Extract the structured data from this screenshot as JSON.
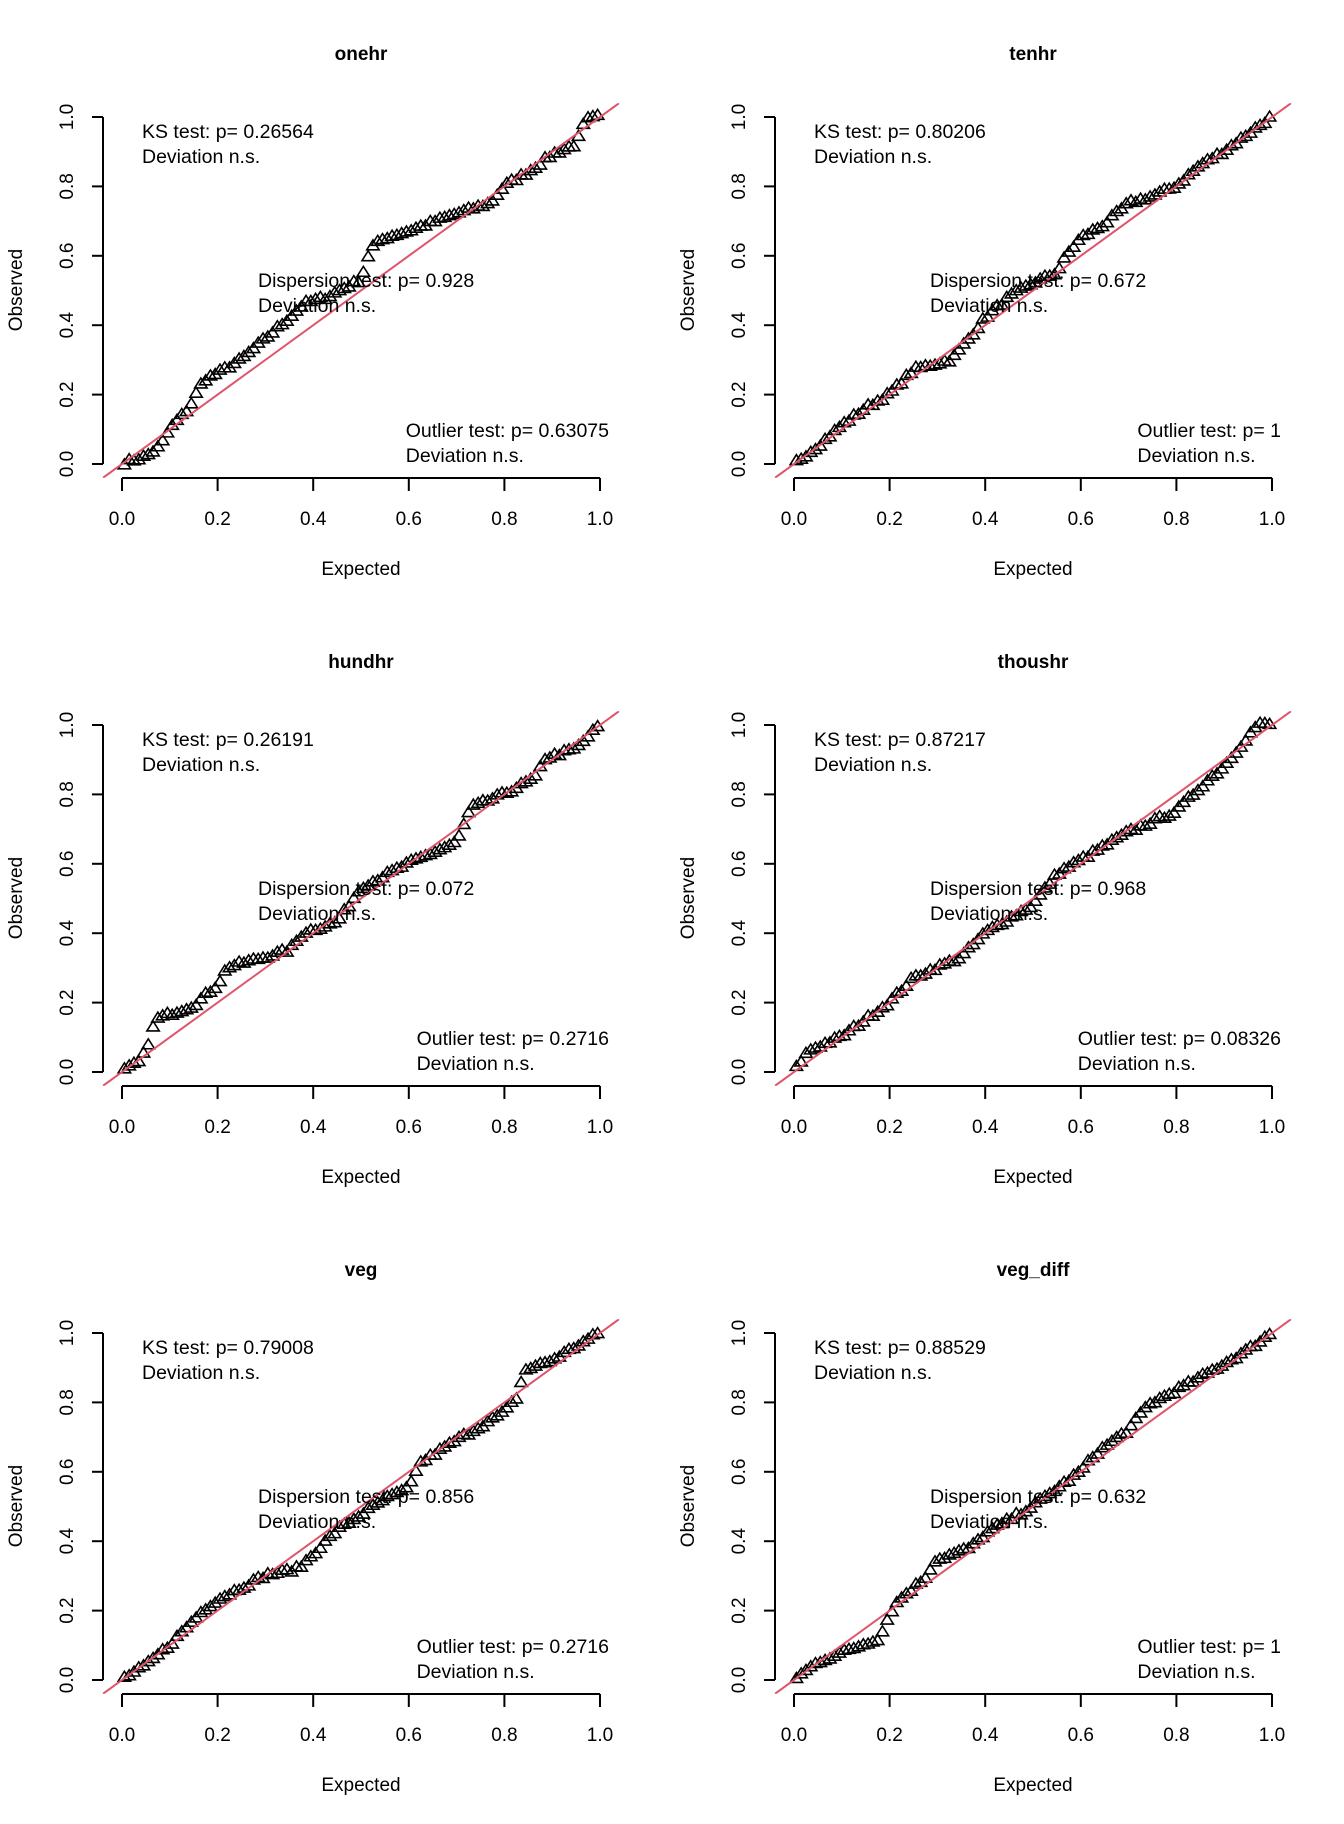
{
  "chart_data": [
    {
      "type": "scatter",
      "title": "onehr",
      "xlabel": "Expected",
      "ylabel": "Observed",
      "xlim": [
        0,
        1
      ],
      "ylim": [
        0,
        1
      ],
      "xticks": [
        "0.0",
        "0.2",
        "0.4",
        "0.6",
        "0.8",
        "1.0"
      ],
      "yticks": [
        "0.0",
        "0.2",
        "0.4",
        "0.6",
        "0.8",
        "1.0"
      ],
      "marker": "open-triangle",
      "reference_line": {
        "slope": 1,
        "intercept": 0,
        "color": "#DF536B"
      },
      "annotations": {
        "ks": [
          "KS test: p= 0.26564",
          "Deviation  n.s."
        ],
        "dispersion": [
          "Dispersion test: p= 0.928",
          "Deviation  n.s."
        ],
        "outlier": [
          "Outlier test: p= 0.63075",
          "Deviation  n.s."
        ]
      },
      "approx_curve": [
        [
          0,
          0
        ],
        [
          0.05,
          0.02
        ],
        [
          0.08,
          0.05
        ],
        [
          0.1,
          0.1
        ],
        [
          0.14,
          0.16
        ],
        [
          0.17,
          0.24
        ],
        [
          0.2,
          0.26
        ],
        [
          0.25,
          0.3
        ],
        [
          0.3,
          0.36
        ],
        [
          0.35,
          0.42
        ],
        [
          0.38,
          0.46
        ],
        [
          0.43,
          0.48
        ],
        [
          0.5,
          0.53
        ],
        [
          0.52,
          0.62
        ],
        [
          0.55,
          0.65
        ],
        [
          0.6,
          0.67
        ],
        [
          0.7,
          0.72
        ],
        [
          0.77,
          0.75
        ],
        [
          0.8,
          0.8
        ],
        [
          0.85,
          0.84
        ],
        [
          0.9,
          0.89
        ],
        [
          0.95,
          0.92
        ],
        [
          0.97,
          0.99
        ],
        [
          1,
          1
        ]
      ],
      "n_points": 100
    },
    {
      "type": "scatter",
      "title": "tenhr",
      "xlabel": "Expected",
      "ylabel": "Observed",
      "xlim": [
        0,
        1
      ],
      "ylim": [
        0,
        1
      ],
      "xticks": [
        "0.0",
        "0.2",
        "0.4",
        "0.6",
        "0.8",
        "1.0"
      ],
      "yticks": [
        "0.0",
        "0.2",
        "0.4",
        "0.6",
        "0.8",
        "1.0"
      ],
      "marker": "open-triangle",
      "reference_line": {
        "slope": 1,
        "intercept": 0,
        "color": "#DF536B"
      },
      "annotations": {
        "ks": [
          "KS test: p= 0.80206",
          "Deviation  n.s."
        ],
        "dispersion": [
          "Dispersion test: p= 0.672",
          "Deviation  n.s."
        ],
        "outlier": [
          "Outlier test: p= 1",
          "Deviation  n.s."
        ]
      },
      "approx_curve": [
        [
          0,
          0
        ],
        [
          0.05,
          0.05
        ],
        [
          0.1,
          0.11
        ],
        [
          0.15,
          0.16
        ],
        [
          0.2,
          0.2
        ],
        [
          0.25,
          0.27
        ],
        [
          0.33,
          0.3
        ],
        [
          0.36,
          0.35
        ],
        [
          0.4,
          0.42
        ],
        [
          0.45,
          0.48
        ],
        [
          0.5,
          0.52
        ],
        [
          0.55,
          0.55
        ],
        [
          0.57,
          0.6
        ],
        [
          0.6,
          0.65
        ],
        [
          0.65,
          0.69
        ],
        [
          0.7,
          0.75
        ],
        [
          0.75,
          0.77
        ],
        [
          0.8,
          0.8
        ],
        [
          0.85,
          0.86
        ],
        [
          0.9,
          0.9
        ],
        [
          0.95,
          0.95
        ],
        [
          1,
          1
        ]
      ],
      "n_points": 100
    },
    {
      "type": "scatter",
      "title": "hundhr",
      "xlabel": "Expected",
      "ylabel": "Observed",
      "xlim": [
        0,
        1
      ],
      "ylim": [
        0,
        1
      ],
      "xticks": [
        "0.0",
        "0.2",
        "0.4",
        "0.6",
        "0.8",
        "1.0"
      ],
      "yticks": [
        "0.0",
        "0.2",
        "0.4",
        "0.6",
        "0.8",
        "1.0"
      ],
      "marker": "open-triangle",
      "reference_line": {
        "slope": 1,
        "intercept": 0,
        "color": "#DF536B"
      },
      "annotations": {
        "ks": [
          "KS test: p= 0.26191",
          "Deviation  n.s."
        ],
        "dispersion": [
          "Dispersion test: p= 0.072",
          "Deviation  n.s."
        ],
        "outlier": [
          "Outlier test: p= 0.2716",
          "Deviation  n.s."
        ]
      },
      "approx_curve": [
        [
          0,
          0
        ],
        [
          0.04,
          0.03
        ],
        [
          0.06,
          0.1
        ],
        [
          0.07,
          0.15
        ],
        [
          0.15,
          0.19
        ],
        [
          0.2,
          0.25
        ],
        [
          0.22,
          0.3
        ],
        [
          0.3,
          0.33
        ],
        [
          0.35,
          0.35
        ],
        [
          0.38,
          0.4
        ],
        [
          0.45,
          0.43
        ],
        [
          0.5,
          0.53
        ],
        [
          0.6,
          0.6
        ],
        [
          0.7,
          0.66
        ],
        [
          0.73,
          0.76
        ],
        [
          0.8,
          0.8
        ],
        [
          0.87,
          0.85
        ],
        [
          0.88,
          0.9
        ],
        [
          0.95,
          0.93
        ],
        [
          1,
          1
        ]
      ],
      "n_points": 100
    },
    {
      "type": "scatter",
      "title": "thoushr",
      "xlabel": "Expected",
      "ylabel": "Observed",
      "xlim": [
        0,
        1
      ],
      "ylim": [
        0,
        1
      ],
      "xticks": [
        "0.0",
        "0.2",
        "0.4",
        "0.6",
        "0.8",
        "1.0"
      ],
      "yticks": [
        "0.0",
        "0.2",
        "0.4",
        "0.6",
        "0.8",
        "1.0"
      ],
      "marker": "open-triangle",
      "reference_line": {
        "slope": 1,
        "intercept": 0,
        "color": "#DF536B"
      },
      "annotations": {
        "ks": [
          "KS test: p= 0.87217",
          "Deviation  n.s."
        ],
        "dispersion": [
          "Dispersion test: p= 0.968",
          "Deviation  n.s."
        ],
        "outlier": [
          "Outlier test: p= 0.08326",
          "Deviation  n.s."
        ]
      },
      "approx_curve": [
        [
          0,
          0
        ],
        [
          0.03,
          0.06
        ],
        [
          0.1,
          0.1
        ],
        [
          0.2,
          0.2
        ],
        [
          0.25,
          0.27
        ],
        [
          0.35,
          0.33
        ],
        [
          0.4,
          0.4
        ],
        [
          0.5,
          0.48
        ],
        [
          0.55,
          0.57
        ],
        [
          0.6,
          0.61
        ],
        [
          0.7,
          0.69
        ],
        [
          0.8,
          0.75
        ],
        [
          0.85,
          0.82
        ],
        [
          0.9,
          0.88
        ],
        [
          0.97,
          1
        ],
        [
          1,
          1
        ]
      ],
      "n_points": 100
    },
    {
      "type": "scatter",
      "title": "veg",
      "xlabel": "Expected",
      "ylabel": "Observed",
      "xlim": [
        0,
        1
      ],
      "ylim": [
        0,
        1
      ],
      "xticks": [
        "0.0",
        "0.2",
        "0.4",
        "0.6",
        "0.8",
        "1.0"
      ],
      "yticks": [
        "0.0",
        "0.2",
        "0.4",
        "0.6",
        "0.8",
        "1.0"
      ],
      "marker": "open-triangle",
      "reference_line": {
        "slope": 1,
        "intercept": 0,
        "color": "#DF536B"
      },
      "annotations": {
        "ks": [
          "KS test: p= 0.79008",
          "Deviation  n.s."
        ],
        "dispersion": [
          "Dispersion test: p= 0.856",
          "Deviation  n.s."
        ],
        "outlier": [
          "Outlier test: p= 0.2716",
          "Deviation  n.s."
        ]
      },
      "approx_curve": [
        [
          0,
          0
        ],
        [
          0.05,
          0.04
        ],
        [
          0.1,
          0.1
        ],
        [
          0.17,
          0.2
        ],
        [
          0.2,
          0.23
        ],
        [
          0.3,
          0.3
        ],
        [
          0.37,
          0.32
        ],
        [
          0.45,
          0.43
        ],
        [
          0.55,
          0.52
        ],
        [
          0.6,
          0.55
        ],
        [
          0.62,
          0.62
        ],
        [
          0.7,
          0.69
        ],
        [
          0.8,
          0.77
        ],
        [
          0.83,
          0.82
        ],
        [
          0.84,
          0.89
        ],
        [
          0.9,
          0.92
        ],
        [
          0.95,
          0.96
        ],
        [
          1,
          1
        ]
      ],
      "n_points": 100
    },
    {
      "type": "scatter",
      "title": "veg_diff",
      "xlabel": "Expected",
      "ylabel": "Observed",
      "xlim": [
        0,
        1
      ],
      "ylim": [
        0,
        1
      ],
      "xticks": [
        "0.0",
        "0.2",
        "0.4",
        "0.6",
        "0.8",
        "1.0"
      ],
      "yticks": [
        "0.0",
        "0.2",
        "0.4",
        "0.6",
        "0.8",
        "1.0"
      ],
      "marker": "open-triangle",
      "reference_line": {
        "slope": 1,
        "intercept": 0,
        "color": "#DF536B"
      },
      "annotations": {
        "ks": [
          "KS test: p= 0.88529",
          "Deviation  n.s."
        ],
        "dispersion": [
          "Dispersion test: p= 0.632",
          "Deviation  n.s."
        ],
        "outlier": [
          "Outlier test: p= 1",
          "Deviation  n.s."
        ]
      },
      "approx_curve": [
        [
          0,
          0
        ],
        [
          0.05,
          0.05
        ],
        [
          0.18,
          0.12
        ],
        [
          0.2,
          0.19
        ],
        [
          0.22,
          0.23
        ],
        [
          0.28,
          0.3
        ],
        [
          0.29,
          0.34
        ],
        [
          0.37,
          0.38
        ],
        [
          0.4,
          0.42
        ],
        [
          0.5,
          0.5
        ],
        [
          0.6,
          0.6
        ],
        [
          0.63,
          0.65
        ],
        [
          0.7,
          0.72
        ],
        [
          0.74,
          0.79
        ],
        [
          0.85,
          0.87
        ],
        [
          0.95,
          0.95
        ],
        [
          1,
          1
        ]
      ],
      "n_points": 100
    }
  ]
}
